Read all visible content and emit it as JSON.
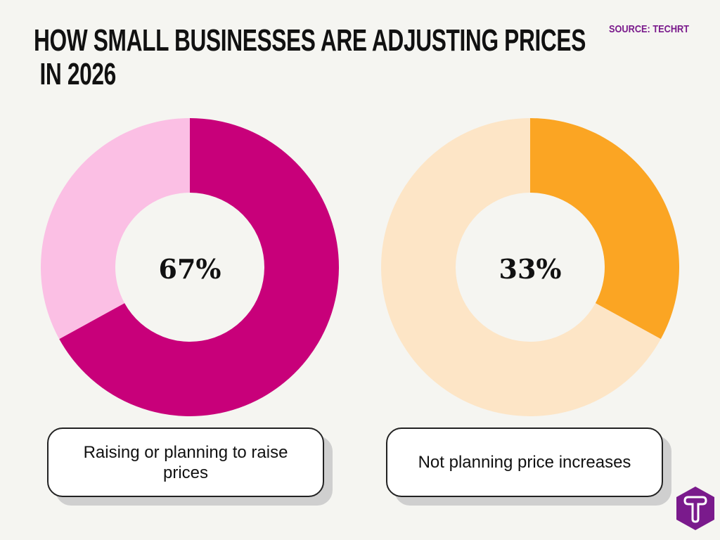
{
  "header": {
    "title": "HOW SMALL BUSINESSES ARE ADJUSTING PRICES\n IN 2026",
    "source": "SOURCE: TECHRT"
  },
  "chart_data": [
    {
      "type": "pie",
      "donut": true,
      "values": [
        67,
        33
      ],
      "labels": [
        "Raising or planning to raise prices",
        ""
      ],
      "colors": [
        "#c8007a",
        "#fbbfe4"
      ],
      "center_label": "67%",
      "caption": "Raising or planning to raise prices"
    },
    {
      "type": "pie",
      "donut": true,
      "values": [
        33,
        67
      ],
      "labels": [
        "Not planning price increases",
        ""
      ],
      "colors": [
        "#fba523",
        "#fde5c6"
      ],
      "center_label": "33%",
      "caption": "Not planning price increases"
    }
  ],
  "logo": {
    "letter": "T",
    "color": "#7a1a8c"
  }
}
